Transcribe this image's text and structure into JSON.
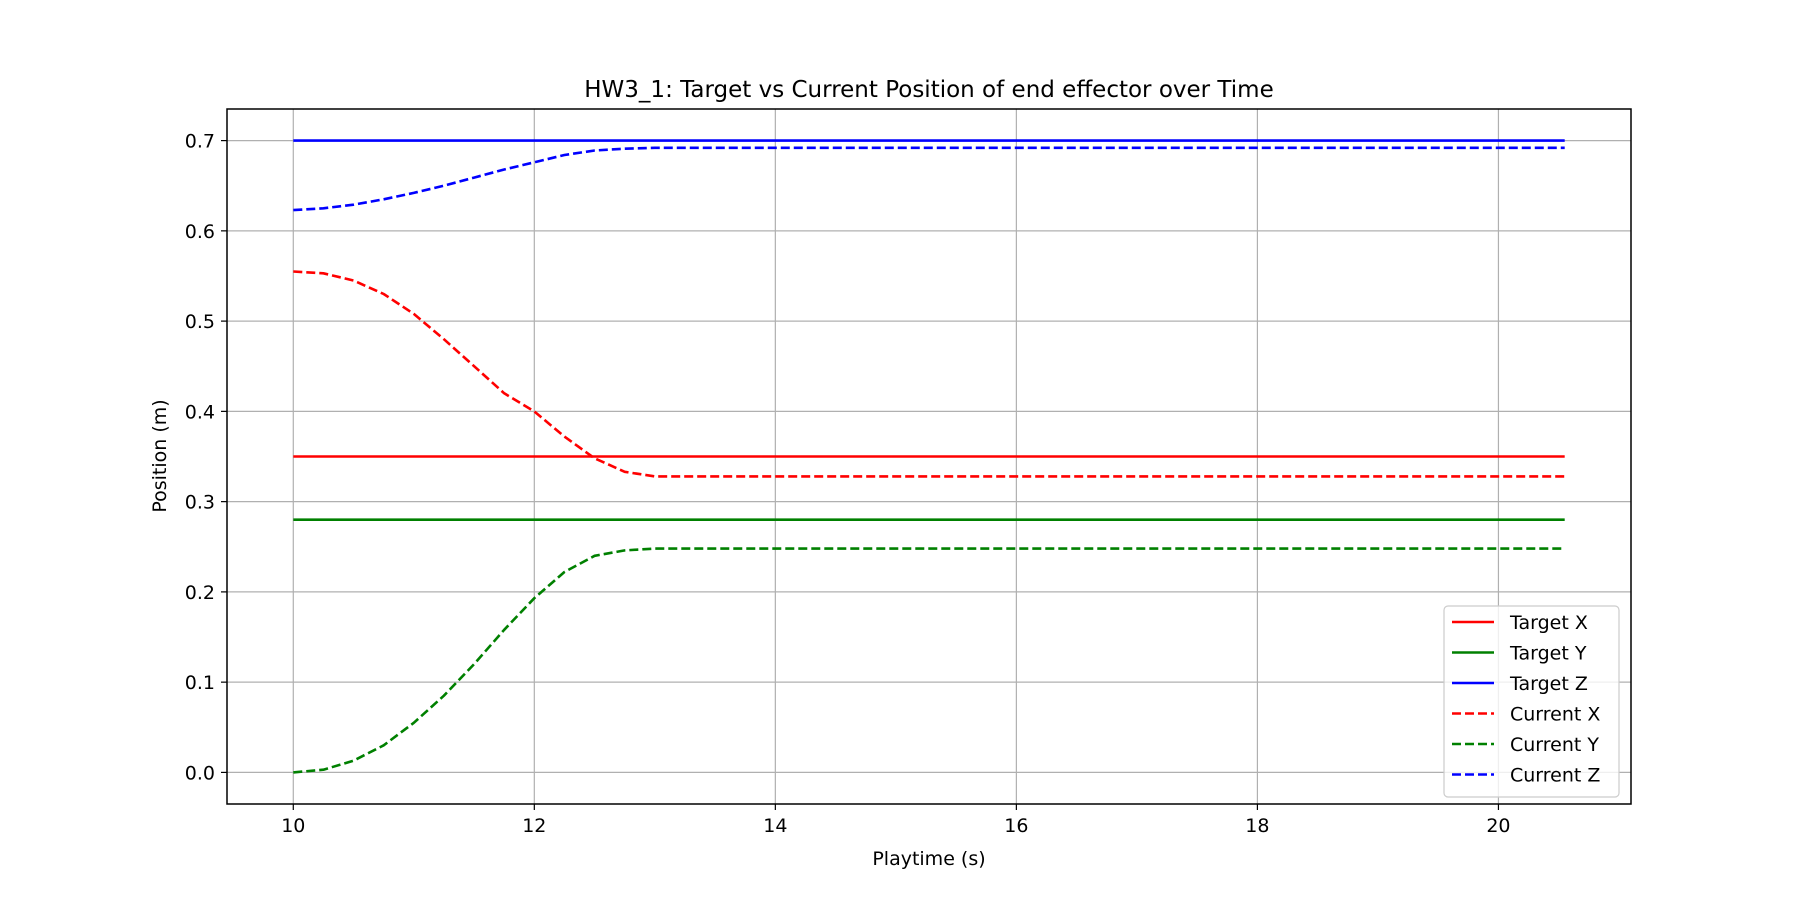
{
  "chart_data": {
    "type": "line",
    "title": "HW3_1: Target vs Current Position of end effector over Time",
    "xlabel": "Playtime (s)",
    "ylabel": "Position (m)",
    "xlim": [
      9.45,
      21.1
    ],
    "ylim": [
      -0.035,
      0.735
    ],
    "xticks": [
      "10",
      "12",
      "14",
      "16",
      "18",
      "20"
    ],
    "yticks": [
      "0.0",
      "0.1",
      "0.2",
      "0.3",
      "0.4",
      "0.5",
      "0.6",
      "0.7"
    ],
    "grid": true,
    "legend_position": "lower-right",
    "series": [
      {
        "name": "Target X",
        "color": "#ff0000",
        "style": "solid",
        "x": [
          10.0,
          20.55
        ],
        "y": [
          0.35,
          0.35
        ]
      },
      {
        "name": "Target Y",
        "color": "#008000",
        "style": "solid",
        "x": [
          10.0,
          20.55
        ],
        "y": [
          0.28,
          0.28
        ]
      },
      {
        "name": "Target Z",
        "color": "#0000ff",
        "style": "solid",
        "x": [
          10.0,
          20.55
        ],
        "y": [
          0.7,
          0.7
        ]
      },
      {
        "name": "Current X",
        "color": "#ff0000",
        "style": "dashed",
        "x": [
          10.0,
          10.25,
          10.5,
          10.75,
          11.0,
          11.25,
          11.5,
          11.75,
          12.0,
          12.25,
          12.5,
          12.75,
          13.0,
          13.25,
          13.5,
          14.0,
          16.0,
          18.0,
          20.55
        ],
        "y": [
          0.555,
          0.553,
          0.545,
          0.53,
          0.508,
          0.48,
          0.45,
          0.42,
          0.4,
          0.372,
          0.348,
          0.333,
          0.328,
          0.328,
          0.328,
          0.328,
          0.328,
          0.328,
          0.328
        ]
      },
      {
        "name": "Current Y",
        "color": "#008000",
        "style": "dashed",
        "x": [
          10.0,
          10.25,
          10.5,
          10.75,
          11.0,
          11.25,
          11.5,
          11.75,
          12.0,
          12.25,
          12.5,
          12.75,
          13.0,
          13.25,
          13.5,
          14.0,
          16.0,
          18.0,
          20.55
        ],
        "y": [
          0.0,
          0.003,
          0.013,
          0.03,
          0.055,
          0.085,
          0.12,
          0.158,
          0.193,
          0.222,
          0.24,
          0.246,
          0.248,
          0.248,
          0.248,
          0.248,
          0.248,
          0.248,
          0.248
        ]
      },
      {
        "name": "Current Z",
        "color": "#0000ff",
        "style": "dashed",
        "x": [
          10.0,
          10.25,
          10.5,
          10.75,
          11.0,
          11.25,
          11.5,
          11.75,
          12.0,
          12.25,
          12.5,
          12.75,
          13.0,
          13.25,
          13.5,
          14.0,
          16.0,
          18.0,
          20.55
        ],
        "y": [
          0.623,
          0.625,
          0.629,
          0.635,
          0.642,
          0.65,
          0.659,
          0.668,
          0.676,
          0.684,
          0.689,
          0.691,
          0.692,
          0.692,
          0.692,
          0.692,
          0.692,
          0.692,
          0.692
        ]
      }
    ]
  }
}
